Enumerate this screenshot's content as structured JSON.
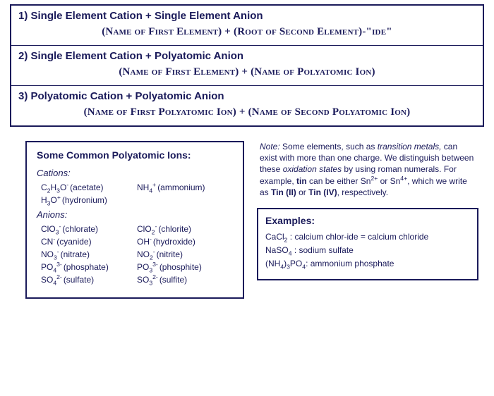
{
  "rules": [
    {
      "heading": "1) Single Element Cation + Single Element Anion",
      "formula": "(Name of First Element) + (Root of Second Element)-\"ide\""
    },
    {
      "heading": "2) Single Element Cation + Polyatomic Anion",
      "formula": "(Name of First Element) + (Name of Polyatomic Ion)"
    },
    {
      "heading": "3) Polyatomic Cation + Polyatomic Anion",
      "formula": "(Name of First Polyatomic Ion) + (Name of Second Polyatomic Ion)"
    }
  ],
  "ions": {
    "title": "Some Common Polyatomic Ions:",
    "cations_label": "Cations:",
    "cations": [
      {
        "formula_html": "C<sub>2</sub>H<sub>3</sub>O<sup>-</sup>",
        "name": "(acetate)",
        "formula2_html": "NH<sub>4</sub><sup>+</sup>",
        "name2": "(ammonium)"
      },
      {
        "formula_html": "H<sub>3</sub>O<sup>+</sup>",
        "name": "(hydronium)",
        "formula2_html": "",
        "name2": ""
      }
    ],
    "anions_label": "Anions:",
    "anions": [
      {
        "formula_html": "ClO<sub>3</sub><sup>-</sup>",
        "name": "(chlorate)",
        "formula2_html": "ClO<sub>2</sub><sup>-</sup>",
        "name2": "(chlorite)"
      },
      {
        "formula_html": "CN<sup>-</sup>",
        "name": "(cyanide)",
        "formula2_html": "OH<sup>-</sup>",
        "name2": "(hydroxide)"
      },
      {
        "formula_html": "NO<sub>3</sub><sup>-</sup>",
        "name": "(nitrate)",
        "formula2_html": "NO<sub>2</sub><sup>-</sup>",
        "name2": "(nitrite)"
      },
      {
        "formula_html": "PO<sub>4</sub><sup>3-</sup>",
        "name": "(phosphate)",
        "formula2_html": "PO<sub>3</sub><sup>3-</sup>",
        "name2": "(phosphite)"
      },
      {
        "formula_html": "SO<sub>4</sub><sup>2-</sup>",
        "name": "(sulfate)",
        "formula2_html": "SO<sub>3</sub><sup>2-</sup>",
        "name2": "(sulfite)"
      }
    ]
  },
  "note_html": "<em>Note:</em> Some elements, such as <em>transition metals,</em> can exist with more than one charge. We distinguish between these <em>oxidation states</em> by using roman numerals.  For example, <b>tin</b> can be either Sn<sup>2+</sup> or Sn<sup>4+</sup>, which we write as <b>Tin (II)</b> or <b>Tin (IV)</b>, respectively.",
  "examples": {
    "title": "Examples:",
    "items": [
      "CaCl<sub>2</sub> : calcium chlor-ide = calcium chloride",
      "NaSO<sub>4</sub> : sodium sulfate",
      "(NH<sub>4</sub>)<sub>3</sub>PO<sub>4</sub>: ammonium phosphate"
    ]
  },
  "colors": {
    "text": "#1a1a5a",
    "border": "#1a1a5a",
    "bg": "#ffffff"
  }
}
